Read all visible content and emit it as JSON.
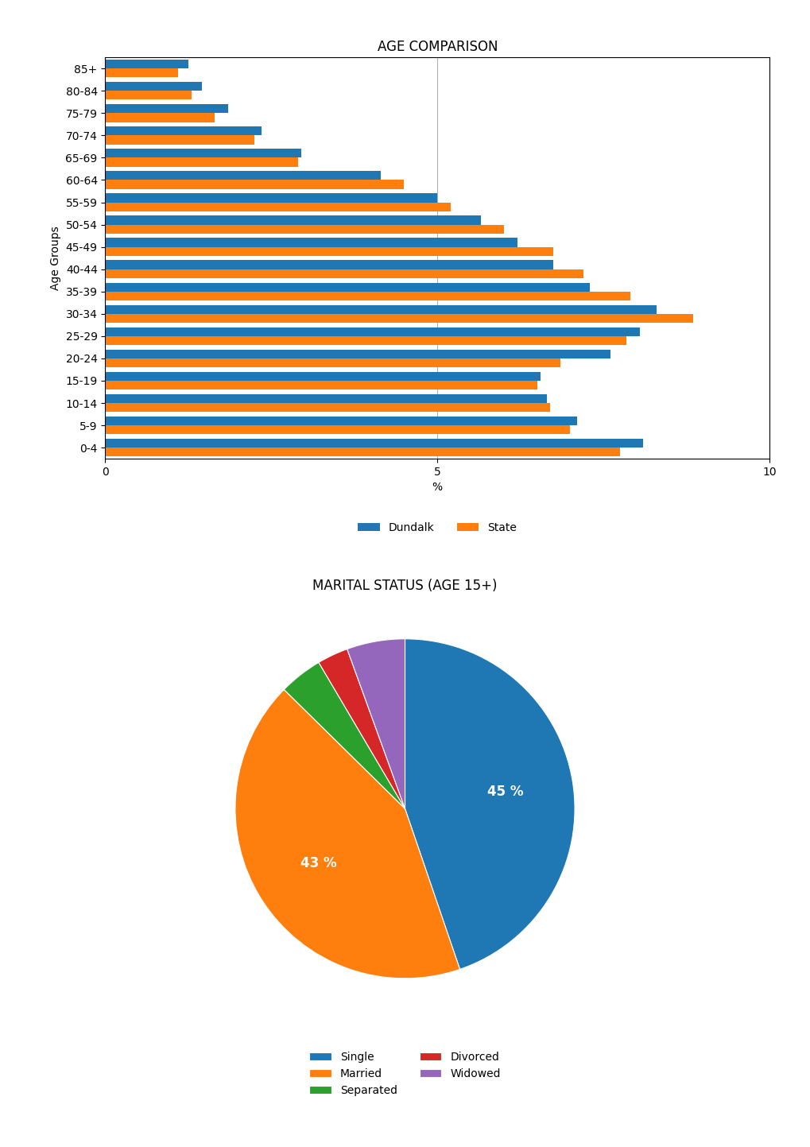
{
  "chart_data": [
    {
      "type": "bar",
      "orientation": "horizontal",
      "title": "AGE COMPARISON",
      "x_label": "%",
      "y_label": "Age Groups",
      "categories": [
        "85+",
        "80-84",
        "75-79",
        "70-74",
        "65-69",
        "60-64",
        "55-59",
        "50-54",
        "45-49",
        "40-44",
        "35-39",
        "30-34",
        "25-29",
        "20-24",
        "15-19",
        "10-14",
        "5-9",
        "0-4"
      ],
      "series": [
        {
          "name": "Dundalk",
          "values": [
            1.25,
            1.45,
            1.85,
            2.35,
            2.95,
            4.15,
            5.0,
            5.65,
            6.2,
            6.75,
            7.3,
            8.3,
            8.05,
            7.6,
            6.55,
            6.65,
            7.1,
            8.1
          ]
        },
        {
          "name": "State",
          "values": [
            1.1,
            1.3,
            1.65,
            2.25,
            2.9,
            4.5,
            5.2,
            6.0,
            6.75,
            7.2,
            7.9,
            8.85,
            7.85,
            6.85,
            6.5,
            6.7,
            7.0,
            7.75
          ]
        }
      ],
      "xlim": [
        0,
        10
      ],
      "xticks": [
        0,
        5,
        10
      ],
      "grid": true,
      "legend": "lower center"
    },
    {
      "type": "pie",
      "title": "MARITAL STATUS (AGE 15+)",
      "categories": [
        "Single",
        "Married",
        "Separated",
        "Divorced",
        "Widowed"
      ],
      "values": [
        13189,
        12557,
        1220,
        869,
        1631
      ],
      "value_labels": [
        "45 %",
        "43 %",
        null,
        null,
        null
      ],
      "legend": "lower center"
    }
  ]
}
